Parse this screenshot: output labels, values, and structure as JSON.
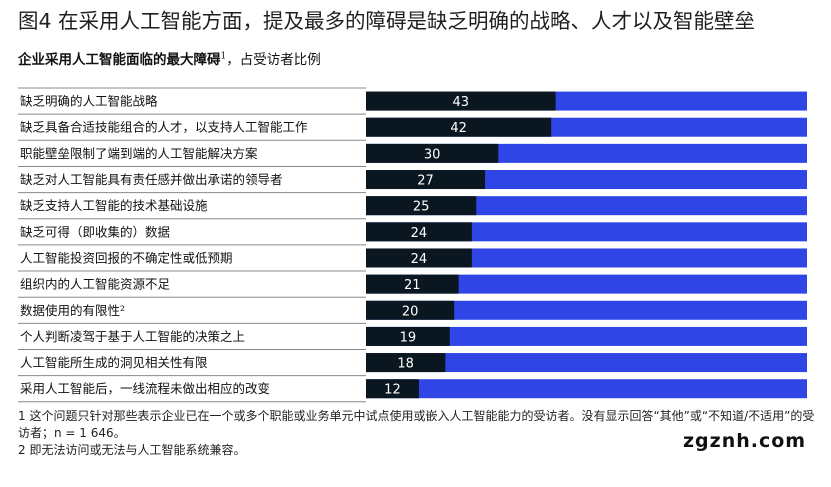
{
  "title": "图4 在采用人工智能方面，提及最多的障碍是缺乏明确的战略、人才以及智能壁垒",
  "subtitle": {
    "bold": "企业采用人工智能面临的最大障碍",
    "sup": "1",
    "rest": "，占受访者比例"
  },
  "colors": {
    "bar": "#0a1720",
    "remainder": "#2f45e6",
    "label_text": "#ffffff"
  },
  "chart_data": {
    "type": "bar",
    "orientation": "horizontal",
    "stacked_to_total": 100,
    "unit": "%",
    "categories": [
      "缺乏明确的人工智能战略",
      "缺乏具备合适技能组合的人才，以支持人工智能工作",
      "职能壁垒限制了端到端的人工智能解决方案",
      "缺乏对人工智能具有责任感并做出承诺的领导者",
      "缺乏支持人工智能的技术基础设施",
      "缺乏可得（即收集的）数据",
      "人工智能投资回报的不确定性或低预期",
      "组织内的人工智能资源不足",
      "数据使用的有限性²",
      "个人判断凌驾于基于人工智能的决策之上",
      "人工智能所生成的洞见相关性有限",
      "采用人工智能后，一线流程未做出相应的改变"
    ],
    "values": [
      43,
      42,
      30,
      27,
      25,
      24,
      24,
      21,
      20,
      19,
      18,
      12
    ],
    "xlim": [
      0,
      100
    ],
    "grid": false,
    "legend": "none"
  },
  "footnotes": [
    "1 这个问题只针对那些表示企业已在一个或多个职能或业务单元中试点使用或嵌入人工智能能力的受访者。没有显示回答“其他”或“不知道/不适用”的受访者；n = 1 646。",
    "2 即无法访问或无法与人工智能系统兼容。"
  ],
  "watermark": "zgznh.com"
}
